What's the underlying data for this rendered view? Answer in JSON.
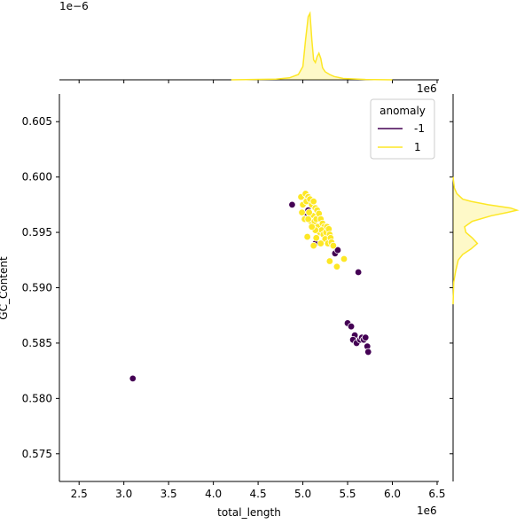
{
  "chart_data": {
    "type": "scatter",
    "title": "",
    "xlabel": "total_length",
    "ylabel": "GC_Content",
    "x_offset_label": "1e6",
    "y_offset_label": "",
    "top_marginal_offset_label": "1e−6",
    "right_marginal_offset_label": "1e6",
    "xlim": [
      2.28,
      6.52
    ],
    "ylim": [
      0.5725,
      0.6075
    ],
    "x_ticks": [
      2.5,
      3.0,
      3.5,
      4.0,
      4.5,
      5.0,
      5.5,
      6.0,
      6.5
    ],
    "x_tick_labels": [
      "2.5",
      "3.0",
      "3.5",
      "4.0",
      "4.5",
      "5.0",
      "5.5",
      "6.0",
      "6.5"
    ],
    "y_ticks": [
      0.575,
      0.58,
      0.585,
      0.59,
      0.595,
      0.6,
      0.605
    ],
    "y_tick_labels": [
      "0.575",
      "0.580",
      "0.585",
      "0.590",
      "0.595",
      "0.600",
      "0.605"
    ],
    "legend": {
      "title": "anomaly",
      "position": "top-right",
      "entries": [
        {
          "label": "-1",
          "color": "#440154"
        },
        {
          "label": "1",
          "color": "#fde725"
        }
      ]
    },
    "series": [
      {
        "name": "-1",
        "color": "#440154",
        "points": [
          [
            3.1,
            0.5818
          ],
          [
            4.88,
            0.5975
          ],
          [
            5.0,
            0.5982
          ],
          [
            5.06,
            0.597
          ],
          [
            5.16,
            0.5963
          ],
          [
            5.12,
            0.5955
          ],
          [
            5.05,
            0.5965
          ],
          [
            5.14,
            0.594
          ],
          [
            5.22,
            0.595
          ],
          [
            5.28,
            0.5945
          ],
          [
            5.36,
            0.5931
          ],
          [
            5.39,
            0.5934
          ],
          [
            5.62,
            0.5914
          ],
          [
            5.5,
            0.5868
          ],
          [
            5.54,
            0.5865
          ],
          [
            5.58,
            0.5857
          ],
          [
            5.56,
            0.5853
          ],
          [
            5.6,
            0.585
          ],
          [
            5.64,
            0.5853
          ],
          [
            5.66,
            0.5855
          ],
          [
            5.68,
            0.5853
          ],
          [
            5.7,
            0.5855
          ],
          [
            5.72,
            0.5847
          ],
          [
            5.73,
            0.5842
          ]
        ]
      },
      {
        "name": "1",
        "color": "#fde725",
        "points": [
          [
            4.98,
            0.5982
          ],
          [
            5.0,
            0.5975
          ],
          [
            5.03,
            0.5985
          ],
          [
            5.06,
            0.5982
          ],
          [
            5.04,
            0.5978
          ],
          [
            4.99,
            0.5968
          ],
          [
            5.02,
            0.5962
          ],
          [
            5.08,
            0.598
          ],
          [
            5.1,
            0.5975
          ],
          [
            5.12,
            0.5978
          ],
          [
            5.14,
            0.5972
          ],
          [
            5.16,
            0.597
          ],
          [
            5.11,
            0.5965
          ],
          [
            5.07,
            0.5968
          ],
          [
            5.09,
            0.596
          ],
          [
            5.13,
            0.596
          ],
          [
            5.15,
            0.5962
          ],
          [
            5.18,
            0.5967
          ],
          [
            5.2,
            0.5962
          ],
          [
            5.17,
            0.5955
          ],
          [
            5.22,
            0.5958
          ],
          [
            5.24,
            0.5955
          ],
          [
            5.19,
            0.595
          ],
          [
            5.21,
            0.5952
          ],
          [
            5.23,
            0.5948
          ],
          [
            5.26,
            0.595
          ],
          [
            5.27,
            0.5955
          ],
          [
            5.29,
            0.5953
          ],
          [
            5.3,
            0.5948
          ],
          [
            5.25,
            0.5944
          ],
          [
            5.28,
            0.594
          ],
          [
            5.31,
            0.5945
          ],
          [
            5.32,
            0.5941
          ],
          [
            5.34,
            0.5938
          ],
          [
            5.14,
            0.5952
          ],
          [
            5.1,
            0.5955
          ],
          [
            5.06,
            0.5962
          ],
          [
            5.05,
            0.5946
          ],
          [
            5.12,
            0.5938
          ],
          [
            5.3,
            0.5924
          ],
          [
            5.38,
            0.5919
          ],
          [
            5.46,
            0.5926
          ],
          [
            5.15,
            0.5945
          ],
          [
            5.2,
            0.594
          ]
        ]
      }
    ],
    "top_marginal": {
      "type": "kde",
      "series_name": "1",
      "color": "#fde725",
      "x": [
        4.2,
        4.7,
        4.85,
        4.95,
        5.0,
        5.03,
        5.06,
        5.08,
        5.1,
        5.12,
        5.14,
        5.16,
        5.18,
        5.2,
        5.22,
        5.25,
        5.3,
        5.35,
        5.45,
        5.7,
        6.0
      ],
      "density": [
        0.0,
        0.01,
        0.03,
        0.08,
        0.2,
        0.6,
        0.95,
        1.0,
        0.6,
        0.3,
        0.26,
        0.35,
        0.4,
        0.32,
        0.18,
        0.12,
        0.08,
        0.05,
        0.02,
        0.005,
        0.0
      ]
    },
    "right_marginal": {
      "type": "kde",
      "series_name": "1",
      "color": "#fde725",
      "y": [
        0.5885,
        0.5905,
        0.5915,
        0.5925,
        0.593,
        0.5935,
        0.594,
        0.5945,
        0.595,
        0.5955,
        0.596,
        0.5965,
        0.5968,
        0.597,
        0.5972,
        0.5975,
        0.5978,
        0.598,
        0.5985,
        0.599,
        0.6
      ],
      "density": [
        0.0,
        0.01,
        0.04,
        0.08,
        0.15,
        0.28,
        0.38,
        0.3,
        0.2,
        0.18,
        0.3,
        0.6,
        0.85,
        1.0,
        0.9,
        0.55,
        0.28,
        0.15,
        0.06,
        0.02,
        0.0
      ]
    }
  }
}
